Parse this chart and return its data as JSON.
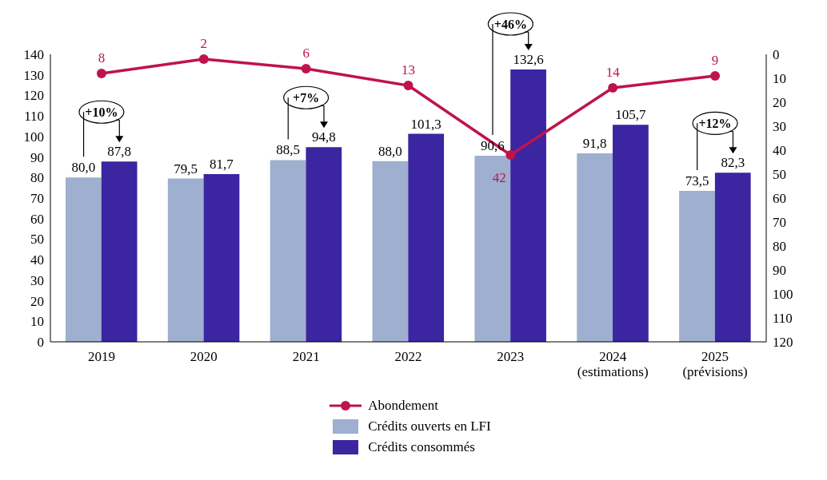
{
  "chart_data": {
    "type": "bar",
    "categories": [
      "2019",
      "2020",
      "2021",
      "2022",
      "2023",
      "2024\n(estimations)",
      "2025\n(prévisions)"
    ],
    "series": [
      {
        "name": "Abondement",
        "type": "line",
        "axis": "y2",
        "color": "#c0134a",
        "values": [
          8,
          2,
          6,
          13,
          42,
          14,
          9
        ],
        "value_labels": [
          "8",
          "2",
          "6",
          "13",
          "42",
          "14",
          "9"
        ]
      },
      {
        "name": "Crédits ouverts en LFI",
        "color": "#9eafcf",
        "values": [
          80.0,
          79.5,
          88.5,
          88.0,
          90.6,
          91.8,
          73.5
        ],
        "value_labels": [
          "80,0",
          "79,5",
          "88,5",
          "88,0",
          "90,6",
          "91,8",
          "73,5"
        ]
      },
      {
        "name": "Crédits consommés",
        "color": "#3b25a1",
        "values": [
          87.8,
          81.7,
          94.8,
          101.3,
          132.6,
          105.7,
          82.3
        ],
        "value_labels": [
          "87,8",
          "81,7",
          "94,8",
          "101,3",
          "132,6",
          "105,7",
          "82,3"
        ]
      }
    ],
    "ylim": [
      0,
      140
    ],
    "yticks": [
      0,
      10,
      20,
      30,
      40,
      50,
      60,
      70,
      80,
      90,
      100,
      110,
      120,
      130,
      140
    ],
    "y2lim": [
      120,
      0
    ],
    "y2ticks": [
      0,
      10,
      20,
      30,
      40,
      50,
      60,
      70,
      80,
      90,
      100,
      110,
      120
    ],
    "marker": "circle",
    "legend": "bottom",
    "grid": false,
    "annotations": [
      "+10%",
      "+7%",
      "+46%",
      "+12%"
    ]
  }
}
